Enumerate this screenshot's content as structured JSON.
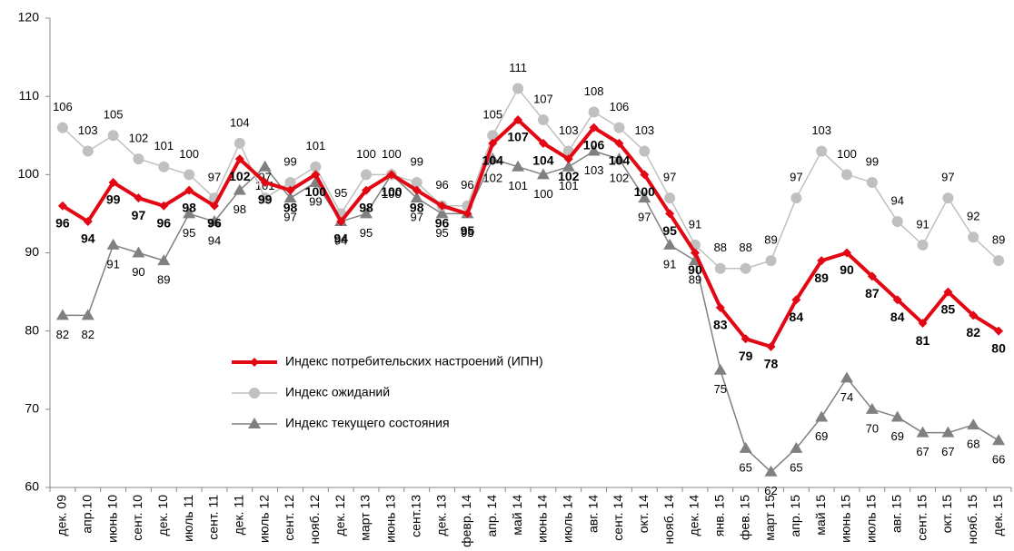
{
  "chart_data": {
    "type": "line",
    "categories": [
      "дек. 09",
      "апр.10",
      "июнь 10",
      "сент. 10",
      "дек. 10",
      "июль 11",
      "сент. 11",
      "дек. 11",
      "июль 12",
      "сент. 12",
      "нояб. 12",
      "дек. 12",
      "март 13",
      "июнь 13",
      "сент.13",
      "дек. 13",
      "февр. 14",
      "апр. 14",
      "май 14",
      "июнь 14",
      "июль 14",
      "авг. 14",
      "сент. 14",
      "окт. 14",
      "нояб. 14",
      "дек. 14",
      "янв. 15",
      "фев. 15",
      "март 15",
      "апр. 15",
      "май 15",
      "июнь 15",
      "июль 15",
      "авг. 15",
      "сент. 15",
      "окт. 15",
      "нояб. 15",
      "дек. 15"
    ],
    "series": [
      {
        "name": "Индекс потребительских настроений (ИПН)",
        "color": "#e30613",
        "marker": "diamond",
        "values": [
          96,
          94,
          99,
          97,
          96,
          98,
          96,
          102,
          99,
          98,
          100,
          94,
          98,
          100,
          98,
          96,
          95,
          104,
          107,
          104,
          102,
          106,
          104,
          100,
          95,
          90,
          83,
          79,
          78,
          84,
          89,
          90,
          87,
          84,
          81,
          85,
          82,
          80
        ]
      },
      {
        "name": "Индекс ожиданий",
        "color": "#c0c0c0",
        "marker": "circle",
        "values": [
          106,
          103,
          105,
          102,
          101,
          100,
          97,
          104,
          97,
          99,
          101,
          95,
          100,
          100,
          99,
          96,
          96,
          105,
          111,
          107,
          103,
          108,
          106,
          103,
          97,
          91,
          88,
          88,
          89,
          97,
          103,
          100,
          99,
          94,
          91,
          97,
          92,
          89
        ]
      },
      {
        "name": "Индекс текущего состояния",
        "color": "#808080",
        "marker": "triangle",
        "values": [
          82,
          82,
          91,
          90,
          89,
          95,
          94,
          98,
          101,
          97,
          99,
          94,
          95,
          100,
          97,
          95,
          95,
          102,
          101,
          100,
          101,
          103,
          102,
          97,
          91,
          89,
          75,
          65,
          62,
          65,
          69,
          74,
          70,
          69,
          67,
          67,
          68,
          66
        ]
      }
    ],
    "ylim": [
      60,
      120
    ],
    "yticks": [
      60,
      70,
      80,
      90,
      100,
      110,
      120
    ]
  }
}
